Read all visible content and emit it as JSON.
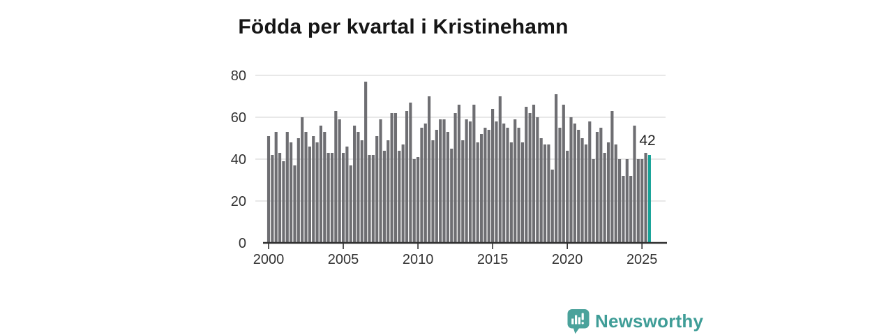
{
  "title": "Födda per kvartal i Kristinehamn",
  "annotation": {
    "text": "42"
  },
  "logo": {
    "text": "Newsworthy",
    "icon": "speech-bubble-bar-chart"
  },
  "colors": {
    "bar": "#6e6e72",
    "highlight": "#17a398",
    "grid": "#d9d9d9",
    "axis": "#2f2f2f",
    "tick_text": "#333333",
    "title_text": "#161616",
    "logo_teal": "#4aa29b",
    "logo_word_teal": "#3f9d97"
  },
  "chart_data": {
    "type": "bar",
    "title": "Födda per kvartal i Kristinehamn",
    "x_start": {
      "year": 2000,
      "quarter": 1
    },
    "x_end": {
      "year": 2025,
      "quarter": 3
    },
    "x_ticks": [
      2000,
      2005,
      2010,
      2015,
      2020,
      2025
    ],
    "y_ticks": [
      0,
      20,
      40,
      60,
      80
    ],
    "ylim": [
      0,
      85
    ],
    "grid": true,
    "legend": false,
    "highlight_last_bar": true,
    "last_value_label": "42",
    "values": [
      51,
      42,
      53,
      43,
      39,
      53,
      48,
      37,
      50,
      60,
      53,
      46,
      51,
      48,
      56,
      53,
      43,
      43,
      63,
      59,
      43,
      46,
      37,
      56,
      53,
      49,
      77,
      42,
      42,
      51,
      59,
      44,
      49,
      62,
      62,
      44,
      47,
      63,
      67,
      40,
      41,
      55,
      57,
      70,
      49,
      54,
      59,
      59,
      53,
      45,
      62,
      66,
      49,
      59,
      58,
      66,
      48,
      52,
      55,
      54,
      64,
      58,
      70,
      57,
      55,
      48,
      59,
      55,
      48,
      65,
      62,
      66,
      60,
      50,
      47,
      47,
      35,
      71,
      55,
      66,
      44,
      60,
      57,
      54,
      50,
      47,
      58,
      40,
      53,
      55,
      43,
      48,
      63,
      47,
      40,
      32,
      40,
      32,
      56,
      40,
      40,
      43,
      42
    ]
  }
}
